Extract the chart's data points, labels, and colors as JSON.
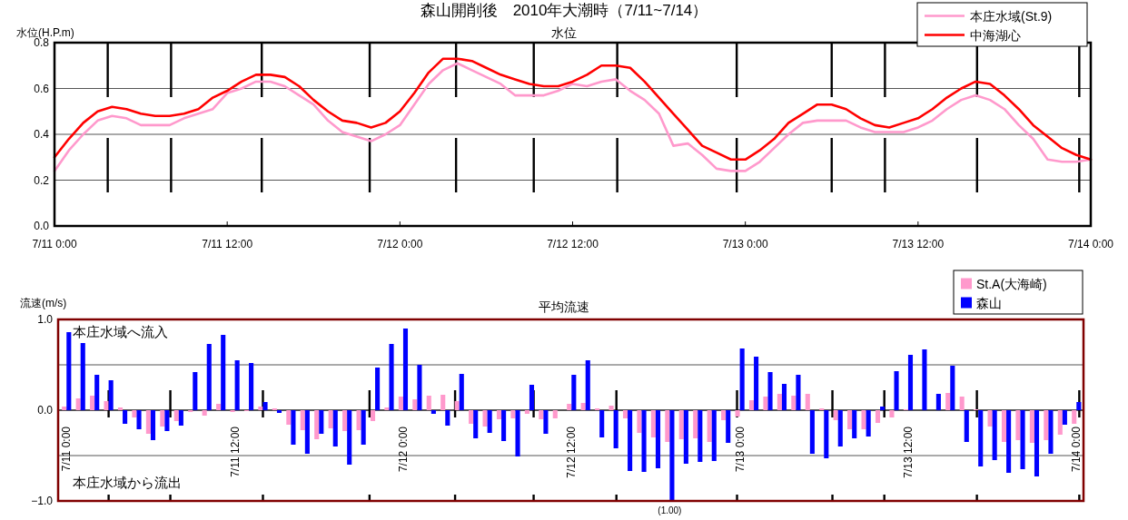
{
  "chart_data": [
    {
      "type": "line",
      "title": "森山開削後　2010年大潮時（7/11~7/14）",
      "subtitle": "水位",
      "ylabel": "水位(H.P.m)",
      "x": [
        "2010-07-11T00:00",
        "2010-07-11T01:00",
        "2010-07-11T02:00",
        "2010-07-11T03:00",
        "2010-07-11T04:00",
        "2010-07-11T05:00",
        "2010-07-11T06:00",
        "2010-07-11T07:00",
        "2010-07-11T08:00",
        "2010-07-11T09:00",
        "2010-07-11T10:00",
        "2010-07-11T11:00",
        "2010-07-11T12:00",
        "2010-07-11T13:00",
        "2010-07-11T14:00",
        "2010-07-11T15:00",
        "2010-07-11T16:00",
        "2010-07-11T17:00",
        "2010-07-11T18:00",
        "2010-07-11T19:00",
        "2010-07-11T20:00",
        "2010-07-11T21:00",
        "2010-07-11T22:00",
        "2010-07-11T23:00",
        "2010-07-12T00:00",
        "2010-07-12T01:00",
        "2010-07-12T02:00",
        "2010-07-12T03:00",
        "2010-07-12T04:00",
        "2010-07-12T05:00",
        "2010-07-12T06:00",
        "2010-07-12T07:00",
        "2010-07-12T08:00",
        "2010-07-12T09:00",
        "2010-07-12T10:00",
        "2010-07-12T11:00",
        "2010-07-12T12:00",
        "2010-07-12T13:00",
        "2010-07-12T14:00",
        "2010-07-12T15:00",
        "2010-07-12T16:00",
        "2010-07-12T17:00",
        "2010-07-12T18:00",
        "2010-07-12T19:00",
        "2010-07-12T20:00",
        "2010-07-12T21:00",
        "2010-07-12T22:00",
        "2010-07-12T23:00",
        "2010-07-13T00:00",
        "2010-07-13T01:00",
        "2010-07-13T02:00",
        "2010-07-13T03:00",
        "2010-07-13T04:00",
        "2010-07-13T05:00",
        "2010-07-13T06:00",
        "2010-07-13T07:00",
        "2010-07-13T08:00",
        "2010-07-13T09:00",
        "2010-07-13T10:00",
        "2010-07-13T11:00",
        "2010-07-13T12:00",
        "2010-07-13T13:00",
        "2010-07-13T14:00",
        "2010-07-13T15:00",
        "2010-07-13T16:00",
        "2010-07-13T17:00",
        "2010-07-13T18:00",
        "2010-07-13T19:00",
        "2010-07-13T20:00",
        "2010-07-13T21:00",
        "2010-07-13T22:00",
        "2010-07-13T23:00",
        "2010-07-14T00:00"
      ],
      "series": [
        {
          "name": "本庄水域(St.9)",
          "color": "#ff99cc",
          "values": [
            0.24,
            0.33,
            0.4,
            0.46,
            0.48,
            0.47,
            0.44,
            0.44,
            0.44,
            0.47,
            0.49,
            0.51,
            0.58,
            0.6,
            0.63,
            0.63,
            0.61,
            0.57,
            0.53,
            0.46,
            0.41,
            0.39,
            0.37,
            0.4,
            0.44,
            0.53,
            0.62,
            0.68,
            0.71,
            0.68,
            0.65,
            0.62,
            0.57,
            0.57,
            0.57,
            0.59,
            0.62,
            0.61,
            0.63,
            0.64,
            0.59,
            0.55,
            0.49,
            0.35,
            0.36,
            0.31,
            0.25,
            0.24,
            0.24,
            0.28,
            0.34,
            0.4,
            0.45,
            0.46,
            0.46,
            0.46,
            0.43,
            0.41,
            0.41,
            0.41,
            0.43,
            0.46,
            0.51,
            0.55,
            0.57,
            0.55,
            0.51,
            0.44,
            0.38,
            0.29,
            0.28,
            0.28,
            0.29
          ]
        },
        {
          "name": "中海湖心",
          "color": "#ff0000",
          "values": [
            0.3,
            0.38,
            0.45,
            0.5,
            0.52,
            0.51,
            0.49,
            0.48,
            0.48,
            0.49,
            0.51,
            0.56,
            0.59,
            0.63,
            0.66,
            0.66,
            0.65,
            0.61,
            0.55,
            0.5,
            0.46,
            0.45,
            0.43,
            0.45,
            0.5,
            0.58,
            0.67,
            0.73,
            0.73,
            0.72,
            0.69,
            0.66,
            0.64,
            0.62,
            0.61,
            0.61,
            0.63,
            0.66,
            0.7,
            0.7,
            0.69,
            0.63,
            0.56,
            0.49,
            0.42,
            0.35,
            0.32,
            0.29,
            0.29,
            0.33,
            0.38,
            0.45,
            0.49,
            0.53,
            0.53,
            0.51,
            0.47,
            0.44,
            0.43,
            0.45,
            0.47,
            0.51,
            0.56,
            0.6,
            0.63,
            0.62,
            0.57,
            0.51,
            0.44,
            0.39,
            0.34,
            0.31,
            0.29
          ]
        }
      ],
      "xlim": [
        "2010-07-11T00:00",
        "2010-07-14T00:00"
      ],
      "xticks": [
        {
          "value": "2010-07-11T00:00",
          "label": "7/11 0:00"
        },
        {
          "value": "2010-07-11T12:00",
          "label": "7/11 12:00"
        },
        {
          "value": "2010-07-12T00:00",
          "label": "7/12 0:00"
        },
        {
          "value": "2010-07-12T12:00",
          "label": "7/12 12:00"
        },
        {
          "value": "2010-07-13T00:00",
          "label": "7/13 0:00"
        },
        {
          "value": "2010-07-13T12:00",
          "label": "7/13 12:00"
        },
        {
          "value": "2010-07-14T00:00",
          "label": "7/14 0:00"
        }
      ],
      "ylim": [
        0,
        0.8
      ],
      "yticks": [
        {
          "value": 0,
          "label": "0.0"
        },
        {
          "value": 0.2,
          "label": "0.2"
        },
        {
          "value": 0.4,
          "label": "0.4"
        },
        {
          "value": 0.6,
          "label": "0.6"
        },
        {
          "value": 0.8,
          "label": "0.8"
        }
      ],
      "ref_lines": [
        {
          "axis": "x",
          "value": "2010-07-11T03:42",
          "color": "#000000",
          "line_style": "dashed"
        },
        {
          "axis": "x",
          "value": "2010-07-11T08:06",
          "color": "#000000",
          "line_style": "dashed"
        },
        {
          "axis": "x",
          "value": "2010-07-11T14:24",
          "color": "#000000",
          "line_style": "dashed"
        },
        {
          "axis": "x",
          "value": "2010-07-11T21:54",
          "color": "#000000",
          "line_style": "dashed"
        },
        {
          "axis": "x",
          "value": "2010-07-12T03:54",
          "color": "#000000",
          "line_style": "dashed"
        },
        {
          "axis": "x",
          "value": "2010-07-12T09:18",
          "color": "#000000",
          "line_style": "dashed"
        },
        {
          "axis": "x",
          "value": "2010-07-12T15:06",
          "color": "#000000",
          "line_style": "dashed"
        },
        {
          "axis": "x",
          "value": "2010-07-12T23:24",
          "color": "#000000",
          "line_style": "dashed"
        },
        {
          "axis": "x",
          "value": "2010-07-13T06:00",
          "color": "#000000",
          "line_style": "dashed"
        },
        {
          "axis": "x",
          "value": "2010-07-13T09:42",
          "color": "#000000",
          "line_style": "dashed"
        },
        {
          "axis": "x",
          "value": "2010-07-13T16:06",
          "color": "#000000",
          "line_style": "dashed"
        },
        {
          "axis": "x",
          "value": "2010-07-13T23:12",
          "color": "#000000",
          "line_style": "dashed"
        }
      ],
      "grid": "y",
      "legend": "top right",
      "marker": "none",
      "line_style": "solid"
    },
    {
      "type": "bar",
      "subtitle": "平均流速",
      "ylabel": "流速(m/s)",
      "x": [
        "2010-07-11T00:00",
        "2010-07-11T01:00",
        "2010-07-11T02:00",
        "2010-07-11T03:00",
        "2010-07-11T04:00",
        "2010-07-11T05:00",
        "2010-07-11T06:00",
        "2010-07-11T07:00",
        "2010-07-11T08:00",
        "2010-07-11T09:00",
        "2010-07-11T10:00",
        "2010-07-11T11:00",
        "2010-07-11T12:00",
        "2010-07-11T13:00",
        "2010-07-11T14:00",
        "2010-07-11T15:00",
        "2010-07-11T16:00",
        "2010-07-11T17:00",
        "2010-07-11T18:00",
        "2010-07-11T19:00",
        "2010-07-11T20:00",
        "2010-07-11T21:00",
        "2010-07-11T22:00",
        "2010-07-11T23:00",
        "2010-07-12T00:00",
        "2010-07-12T01:00",
        "2010-07-12T02:00",
        "2010-07-12T03:00",
        "2010-07-12T04:00",
        "2010-07-12T05:00",
        "2010-07-12T06:00",
        "2010-07-12T07:00",
        "2010-07-12T08:00",
        "2010-07-12T09:00",
        "2010-07-12T10:00",
        "2010-07-12T11:00",
        "2010-07-12T12:00",
        "2010-07-12T13:00",
        "2010-07-12T14:00",
        "2010-07-12T15:00",
        "2010-07-12T16:00",
        "2010-07-12T17:00",
        "2010-07-12T18:00",
        "2010-07-12T19:00",
        "2010-07-12T20:00",
        "2010-07-12T21:00",
        "2010-07-12T22:00",
        "2010-07-12T23:00",
        "2010-07-13T00:00",
        "2010-07-13T01:00",
        "2010-07-13T02:00",
        "2010-07-13T03:00",
        "2010-07-13T04:00",
        "2010-07-13T05:00",
        "2010-07-13T06:00",
        "2010-07-13T07:00",
        "2010-07-13T08:00",
        "2010-07-13T09:00",
        "2010-07-13T10:00",
        "2010-07-13T11:00",
        "2010-07-13T12:00",
        "2010-07-13T13:00",
        "2010-07-13T14:00",
        "2010-07-13T15:00",
        "2010-07-13T16:00",
        "2010-07-13T17:00",
        "2010-07-13T18:00",
        "2010-07-13T19:00",
        "2010-07-13T20:00",
        "2010-07-13T21:00",
        "2010-07-13T22:00",
        "2010-07-13T23:00",
        "2010-07-14T00:00"
      ],
      "series": [
        {
          "name": "St.A(大海崎)",
          "color": "#ff99cc",
          "values": [
            0.04,
            0.13,
            0.16,
            0.1,
            0.03,
            -0.08,
            -0.26,
            -0.18,
            -0.12,
            -0.02,
            -0.06,
            0.07,
            -0.02,
            -0.01,
            0.04,
            0.02,
            -0.16,
            -0.22,
            -0.32,
            -0.2,
            -0.23,
            -0.22,
            -0.12,
            0.03,
            0.15,
            0.12,
            0.16,
            0.17,
            0.1,
            -0.15,
            -0.18,
            -0.1,
            -0.09,
            -0.04,
            -0.1,
            -0.09,
            0.07,
            0.08,
            0.02,
            0.05,
            -0.09,
            -0.25,
            -0.3,
            -0.35,
            -0.32,
            -0.31,
            -0.35,
            -0.11,
            -0.07,
            0.11,
            0.15,
            0.18,
            0.16,
            0.18,
            0.02,
            -0.11,
            -0.21,
            -0.21,
            -0.14,
            -0.08,
            0.01,
            0,
            0,
            0.19,
            0.15,
            0.01,
            -0.18,
            -0.35,
            -0.33,
            -0.36,
            -0.33,
            -0.27,
            -0.15
          ]
        },
        {
          "name": "森山",
          "color": "#0000ff",
          "values": [
            0.86,
            0.74,
            0.39,
            0.33,
            -0.15,
            -0.21,
            -0.33,
            -0.23,
            -0.17,
            0.42,
            0.73,
            0.83,
            0.55,
            0.52,
            0.09,
            -0.03,
            -0.38,
            -0.48,
            -0.26,
            -0.4,
            -0.6,
            -0.38,
            0.47,
            0.73,
            0.9,
            0.5,
            -0.04,
            -0.17,
            0.4,
            -0.31,
            -0.25,
            -0.34,
            -0.51,
            0.28,
            -0.26,
            0,
            0.39,
            0.55,
            -0.3,
            -0.42,
            -0.67,
            -0.68,
            -0.64,
            -1.0,
            -0.59,
            -0.57,
            -0.56,
            -0.36,
            0.68,
            0.59,
            0.42,
            0.29,
            0.39,
            -0.48,
            -0.53,
            -0.4,
            -0.31,
            -0.29,
            0.04,
            0.43,
            0.61,
            0.67,
            0.18,
            0.49,
            -0.35,
            -0.62,
            -0.55,
            -0.69,
            -0.65,
            -0.73,
            -0.48,
            -0.16,
            0.09
          ]
        }
      ],
      "xlim": [
        "2010-07-10T23:24",
        "2010-07-14T00:30"
      ],
      "xticks": [
        {
          "value": "2010-07-11T00:00",
          "label": "7/11 0:00"
        },
        {
          "value": "2010-07-11T12:00",
          "label": "7/11 12:00"
        },
        {
          "value": "2010-07-12T00:00",
          "label": "7/12 0:00"
        },
        {
          "value": "2010-07-12T12:00",
          "label": "7/12 12:00"
        },
        {
          "value": "2010-07-13T00:00",
          "label": "7/13 0:00"
        },
        {
          "value": "2010-07-13T12:00",
          "label": "7/13 12:00"
        },
        {
          "value": "2010-07-14T00:00",
          "label": "7/14 0:00"
        }
      ],
      "ylim": [
        -1.0,
        1.0
      ],
      "yticks": [
        {
          "value": -1,
          "label": "−1.0"
        },
        {
          "value": -0.5,
          "label": null
        },
        {
          "value": 0,
          "label": "0.0"
        },
        {
          "value": 0.5,
          "label": null
        },
        {
          "value": 1,
          "label": "1.0"
        }
      ],
      "ref_lines": [
        {
          "axis": "x",
          "value": "2010-07-11T03:00",
          "color": "#000000",
          "line_style": "dashed"
        },
        {
          "axis": "x",
          "value": "2010-07-11T07:24",
          "color": "#000000",
          "line_style": "dashed"
        },
        {
          "axis": "x",
          "value": "2010-07-11T14:00",
          "color": "#000000",
          "line_style": "dashed"
        },
        {
          "axis": "x",
          "value": "2010-07-11T21:36",
          "color": "#000000",
          "line_style": "dashed"
        },
        {
          "axis": "x",
          "value": "2010-07-12T03:42",
          "color": "#000000",
          "line_style": "dashed"
        },
        {
          "axis": "x",
          "value": "2010-07-12T09:18",
          "color": "#000000",
          "line_style": "dashed"
        },
        {
          "axis": "x",
          "value": "2010-07-12T15:12",
          "color": "#000000",
          "line_style": "dashed"
        },
        {
          "axis": "x",
          "value": "2010-07-12T23:48",
          "color": "#000000",
          "line_style": "dashed"
        },
        {
          "axis": "x",
          "value": "2010-07-13T06:36",
          "color": "#000000",
          "line_style": "dashed"
        },
        {
          "axis": "x",
          "value": "2010-07-13T10:18",
          "color": "#000000",
          "line_style": "dashed"
        },
        {
          "axis": "x",
          "value": "2010-07-13T16:54",
          "color": "#000000",
          "line_style": "dashed"
        },
        {
          "axis": "x",
          "value": "2010-07-14T00:12",
          "color": "#000000",
          "line_style": "dashed"
        }
      ],
      "annotations": [
        "本庄水域へ流入",
        "本庄水域から流出",
        {
          "text": "(1.00)",
          "x": "2010-07-12T19:00",
          "y": -1.0
        }
      ],
      "grid": "y",
      "legend": "top right"
    }
  ]
}
